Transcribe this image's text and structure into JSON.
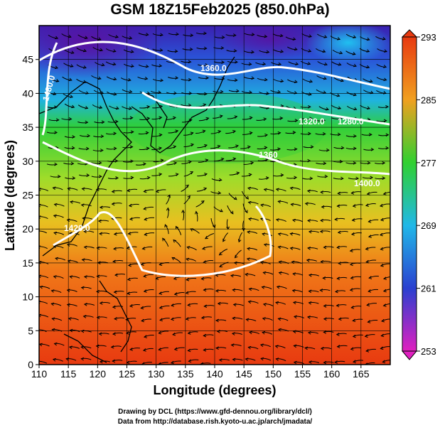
{
  "title": "GSM 18Z15Feb2025 (850.0hPa)",
  "xlabel": "Longitude (degrees)",
  "ylabel": "Latitude  (degrees)",
  "x_ticks": [
    "110",
    "115",
    "120",
    "125",
    "130",
    "135",
    "140",
    "145",
    "150",
    "155",
    "160",
    "165"
  ],
  "y_ticks": [
    "0",
    "5",
    "10",
    "15",
    "20",
    "25",
    "30",
    "35",
    "40",
    "45"
  ],
  "colorbar": {
    "ticks": [
      "293",
      "285",
      "277",
      "269",
      "261",
      "253"
    ],
    "range": [
      253,
      293
    ]
  },
  "contour_labels": [
    "1360.0",
    "1280.0",
    "1320.0",
    "1360",
    "1400.0",
    "1420.0",
    "1480.0"
  ],
  "credit_line1": "Drawing by DCL (https://www.gfd-dennou.org/library/dcl/)",
  "credit_line2": "Data from http://database.rish.kyoto-u.ac.jp/arch/jmadata/",
  "colors": {
    "cold": "#3a1fb0",
    "cool": "#1fb3e0",
    "mild": "#2fcf3a",
    "warm": "#e8c020",
    "hot": "#e83a10"
  }
}
